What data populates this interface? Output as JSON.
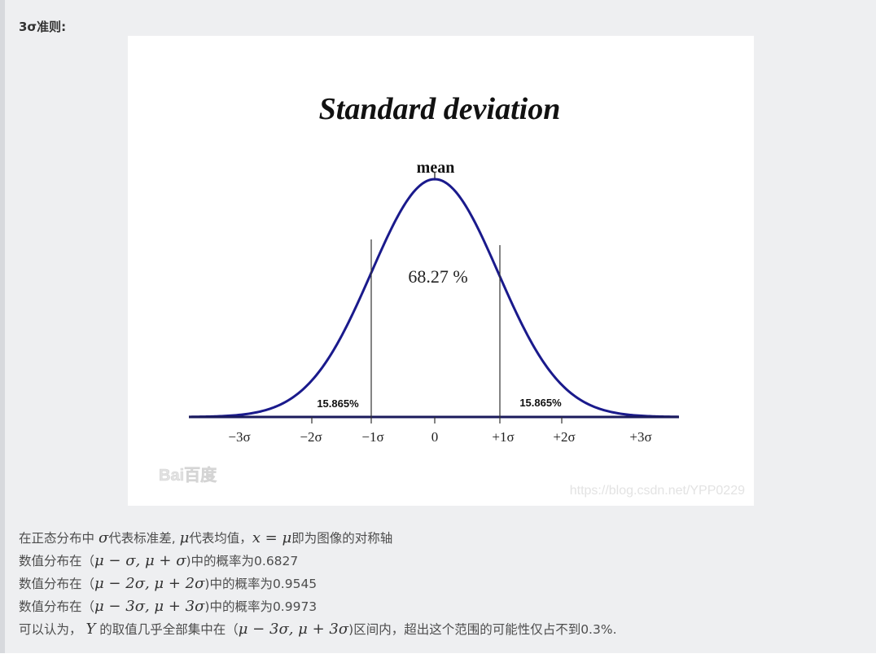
{
  "quote": {
    "title": "3σ准则:"
  },
  "figure": {
    "title": "Standard deviation",
    "mean_label": "mean",
    "center_pct": "68.27 %",
    "left_tail_pct": "15.865%",
    "right_tail_pct": "15.865%",
    "ticks": [
      "−3σ",
      "−2σ",
      "−1σ",
      "0",
      "+1σ",
      "+2σ",
      "+3σ"
    ],
    "watermark_logo": "Bai百度",
    "watermark_url": "https://blog.csdn.net/YPP0229",
    "curve_color": "#1a1a8c",
    "axis_color": "#1a1a5c"
  },
  "text": {
    "line1": {
      "a": "在正态分布中 ",
      "m1": "σ",
      "b": "代表标准差, ",
      "m2": "μ",
      "c": "代表均值，",
      "m3": "x = μ",
      "d": "即为图像的对称轴"
    },
    "line2": {
      "a": "数值分布在（",
      "m1": "μ − σ, μ + σ",
      "b": ")中的概率为0.6827"
    },
    "line3": {
      "a": "数值分布在（",
      "m1": "μ − 2σ, μ + 2σ",
      "b": ")中的概率为0.9545"
    },
    "line4": {
      "a": "数值分布在（",
      "m1": "μ − 3σ, μ + 3σ",
      "b": ")中的概率为0.9973"
    },
    "line5": {
      "a": "可以认为， ",
      "m1": "Y",
      "b": " 的取值几乎全部集中在（",
      "m2": "μ − 3σ, μ + 3σ",
      "c": ")区间内，超出这个范围的可能性仅占不到0.3%."
    }
  }
}
